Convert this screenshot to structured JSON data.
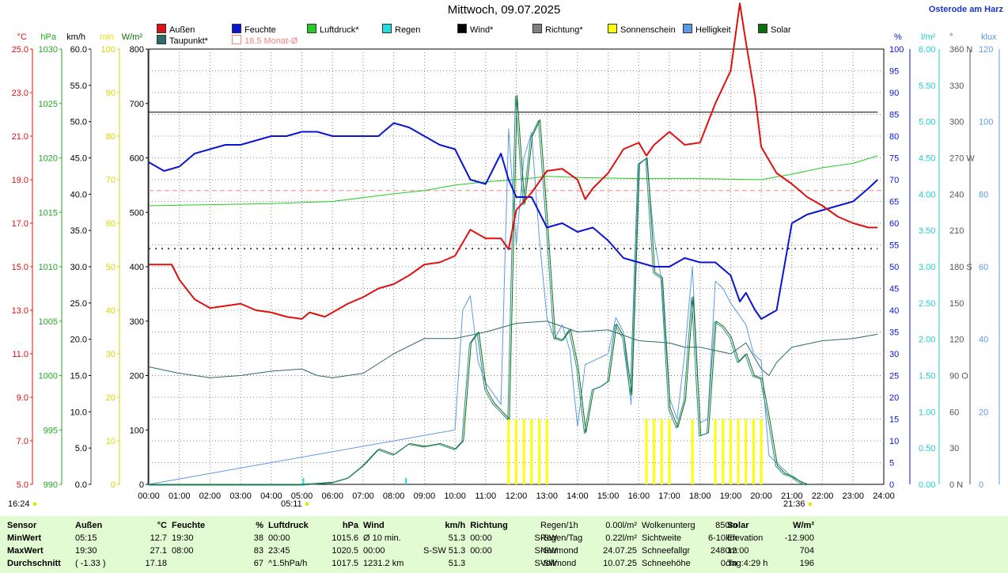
{
  "title": "Mittwoch, 09.07.2025",
  "site": "Osterode am Harz",
  "legend": [
    {
      "label": "Außen",
      "color": "#e01010"
    },
    {
      "label": "Feuchte",
      "color": "#0a14d2"
    },
    {
      "label": "Luftdruck*",
      "color": "#22cc22"
    },
    {
      "label": "Regen",
      "color": "#22dddd"
    },
    {
      "label": "Wind*",
      "color": "#000000"
    },
    {
      "label": "Richtung*",
      "color": "#808080"
    },
    {
      "label": "Sonnenschein",
      "color": "#ffff00"
    },
    {
      "label": "Helligkeit",
      "color": "#5a9be8"
    },
    {
      "label": "Solar",
      "color": "#0a700a"
    },
    {
      "label": "Taupunkt*",
      "color": "#2a6a6a"
    },
    {
      "label": "18.5 Monat-Ø",
      "color": "#ff8080"
    }
  ],
  "axes": {
    "left_units": [
      "°C",
      "hPa",
      "km/h",
      "min",
      "W/m²"
    ],
    "left_unit_colors": [
      "#e01010",
      "#22aa22",
      "#000000",
      "#e6e600",
      "#0a700a"
    ],
    "right_units": [
      "%",
      "l/m²",
      "°",
      "klux"
    ],
    "right_unit_colors": [
      "#0a14d2",
      "#22cccc",
      "#555555",
      "#5a9be8"
    ],
    "temp_ticks": [
      "25.0",
      "23.0",
      "21.0",
      "19.0",
      "17.0",
      "15.0",
      "13.0",
      "11.0",
      "9.0",
      "7.0",
      "5.0"
    ],
    "hpa_ticks": [
      "1030",
      "1025",
      "1020",
      "1015",
      "1010",
      "1005",
      "1000",
      "995",
      "990"
    ],
    "kmh_ticks": [
      "60.0",
      "55.0",
      "50.0",
      "45.0",
      "40.0",
      "35.0",
      "30.0",
      "25.0",
      "20.0",
      "15.0",
      "10.0",
      "5.0",
      "0.0"
    ],
    "min_ticks": [
      "100",
      "90",
      "80",
      "70",
      "60",
      "50",
      "40",
      "30",
      "20",
      "10",
      "0"
    ],
    "wm2_ticks": [
      "800",
      "700",
      "600",
      "500",
      "400",
      "300",
      "200",
      "100",
      "0"
    ],
    "pct_ticks": [
      "100",
      "95",
      "90",
      "85",
      "80",
      "75",
      "70",
      "65",
      "60",
      "55",
      "50",
      "45",
      "40",
      "35",
      "30",
      "25",
      "20",
      "15",
      "10",
      "5",
      "0"
    ],
    "rain_ticks": [
      "6.00",
      "5.50",
      "5.00",
      "4.50",
      "4.00",
      "3.50",
      "3.00",
      "2.50",
      "2.00",
      "1.50",
      "1.00",
      "0.50",
      "0.00"
    ],
    "dir_ticks": [
      "360 N",
      "330",
      "300",
      "270 W",
      "240",
      "210",
      "180 S",
      "150",
      "120",
      "90 O",
      "60",
      "30",
      "0 N"
    ],
    "klux_ticks": [
      "120",
      "100",
      "80",
      "60",
      "40",
      "20",
      "0"
    ],
    "time_ticks": [
      "00:00",
      "01:00",
      "02:00",
      "03:00",
      "04:00",
      "05:00",
      "06:00",
      "07:00",
      "08:00",
      "09:00",
      "10:00",
      "11:00",
      "12:00",
      "13:00",
      "14:00",
      "15:00",
      "16:00",
      "17:00",
      "18:00",
      "19:00",
      "20:00",
      "21:00",
      "22:00",
      "23:00",
      "24:00"
    ]
  },
  "clock_left": "16:24",
  "sunrise": "05:11",
  "sunset": "21:36",
  "chart_data": {
    "type": "line",
    "title": "Mittwoch, 09.07.2025",
    "x_unit": "h",
    "xlim": [
      0,
      24
    ],
    "series": [
      {
        "name": "Außen",
        "unit": "°C",
        "ylim": [
          5,
          25
        ],
        "x": [
          0,
          0.75,
          1.0,
          1.5,
          2.0,
          2.5,
          3.0,
          3.5,
          4.0,
          4.5,
          5.0,
          5.25,
          5.75,
          6.5,
          7.0,
          7.5,
          8.0,
          8.5,
          9.0,
          9.5,
          10.0,
          10.5,
          11.0,
          11.5,
          11.75,
          12.0,
          12.5,
          13.0,
          13.5,
          14.0,
          14.25,
          14.5,
          15.0,
          15.5,
          16.0,
          16.25,
          16.5,
          17.0,
          17.5,
          18.0,
          18.5,
          19.0,
          19.3,
          19.5,
          19.8,
          20.0,
          20.5,
          21.0,
          21.5,
          22.0,
          22.5,
          23.0,
          23.5,
          23.8
        ],
        "y": [
          15.1,
          15.1,
          14.4,
          13.5,
          13.1,
          13.2,
          13.3,
          13.0,
          12.9,
          12.7,
          12.6,
          12.9,
          12.7,
          13.3,
          13.6,
          14.0,
          14.2,
          14.6,
          15.1,
          15.2,
          15.5,
          16.7,
          16.3,
          16.3,
          15.8,
          17.6,
          18.4,
          19.4,
          19.5,
          19.0,
          18.1,
          18.6,
          19.3,
          20.4,
          20.7,
          20.1,
          20.6,
          21.2,
          20.6,
          20.7,
          22.5,
          24.0,
          27.1,
          25.3,
          22.8,
          20.5,
          19.3,
          18.8,
          18.2,
          17.8,
          17.3,
          17.0,
          16.8,
          16.8
        ]
      },
      {
        "name": "Feuchte",
        "unit": "%",
        "ylim": [
          0,
          100
        ],
        "x": [
          0,
          0.5,
          1.0,
          1.5,
          2.0,
          2.5,
          3.0,
          3.5,
          4.0,
          4.5,
          5.0,
          5.5,
          6.0,
          6.5,
          7.0,
          7.5,
          8.0,
          8.5,
          9.0,
          9.5,
          10.0,
          10.5,
          11.0,
          11.5,
          11.75,
          12.0,
          12.5,
          13.0,
          13.5,
          14.0,
          14.5,
          15.0,
          15.5,
          16.0,
          16.5,
          17.0,
          17.5,
          18.0,
          18.5,
          19.0,
          19.3,
          19.5,
          19.8,
          20.0,
          20.5,
          21.0,
          21.5,
          22.0,
          22.5,
          23.0,
          23.5,
          23.8
        ],
        "y": [
          74,
          72,
          73,
          76,
          77,
          78,
          78,
          79,
          80,
          80,
          81,
          81,
          80,
          80,
          80,
          80,
          83,
          82,
          80,
          78,
          77,
          70,
          69,
          76,
          70,
          66,
          66,
          59,
          60,
          58,
          59,
          56,
          52,
          51,
          50,
          50,
          52,
          51,
          51,
          48,
          42,
          44,
          40,
          38,
          40,
          60,
          62,
          63,
          64,
          65,
          68,
          70
        ]
      },
      {
        "name": "Luftdruck*",
        "unit": "hPa",
        "ylim": [
          990,
          1030
        ],
        "x": [
          0,
          2,
          4,
          6,
          8,
          9,
          10,
          11,
          12,
          13,
          14,
          16,
          18,
          20,
          21,
          22,
          23,
          23.8
        ],
        "y": [
          1015.6,
          1015.7,
          1015.8,
          1016.0,
          1016.7,
          1017.0,
          1017.5,
          1017.8,
          1018.0,
          1018.3,
          1018.2,
          1018.1,
          1018.1,
          1018.0,
          1018.5,
          1019.1,
          1019.5,
          1020.2
        ]
      },
      {
        "name": "Wind*",
        "unit": "km/h",
        "ylim": [
          0,
          60
        ],
        "x": [
          0,
          23.8
        ],
        "y": [
          51.3,
          51.3
        ]
      },
      {
        "name": "Richtung*",
        "unit": "°",
        "ylim": [
          0,
          360
        ],
        "x": [
          0,
          23.8
        ],
        "y": [
          195,
          195
        ]
      },
      {
        "name": "18.5 Monat-Ø",
        "unit": "°C",
        "ylim": [
          5,
          25
        ],
        "x": [
          0,
          24
        ],
        "y": [
          18.5,
          18.5
        ]
      },
      {
        "name": "Solar",
        "unit": "W/m²",
        "ylim": [
          0,
          800
        ],
        "x": [
          0,
          5,
          5.5,
          6,
          6.5,
          7,
          7.5,
          8,
          8.5,
          9,
          9.5,
          10,
          10.25,
          10.5,
          10.75,
          11,
          11.25,
          11.5,
          11.75,
          12,
          12.25,
          12.5,
          12.75,
          13,
          13.25,
          13.5,
          13.75,
          14,
          14.25,
          14.5,
          14.75,
          15,
          15.25,
          15.5,
          15.75,
          16,
          16.25,
          16.5,
          16.75,
          17,
          17.25,
          17.5,
          17.75,
          18,
          18.25,
          18.5,
          18.75,
          19,
          19.25,
          19.5,
          19.75,
          20,
          20.25,
          20.5,
          20.75,
          21,
          21.25,
          21.5
        ],
        "y": [
          0,
          0,
          2,
          4,
          12,
          35,
          65,
          55,
          75,
          70,
          75,
          65,
          80,
          260,
          280,
          175,
          150,
          135,
          120,
          715,
          515,
          640,
          670,
          480,
          270,
          265,
          285,
          215,
          95,
          175,
          180,
          190,
          295,
          270,
          165,
          590,
          600,
          390,
          380,
          140,
          105,
          155,
          345,
          90,
          95,
          300,
          290,
          270,
          225,
          240,
          200,
          195,
          120,
          35,
          20,
          15,
          5,
          0
        ]
      },
      {
        "name": "Helligkeit",
        "unit": "klux",
        "ylim": [
          0,
          120
        ],
        "x": [
          0,
          10,
          10.25,
          10.5,
          10.75,
          11,
          11.5,
          11.75,
          12,
          12.25,
          12.5,
          12.75,
          13,
          13.25,
          13.5,
          13.75,
          14,
          14.25,
          14.5,
          15,
          15.25,
          15.5,
          15.75,
          16,
          16.25,
          16.5,
          16.75,
          17,
          17.25,
          17.5,
          17.75,
          18,
          18.25,
          18.5,
          18.75,
          19,
          19.5,
          19.75,
          20,
          20.25,
          20.5,
          21,
          21.5
        ],
        "y": [
          0,
          15,
          48,
          52,
          34,
          28,
          22,
          98,
          66,
          90,
          97,
          68,
          46,
          40,
          44,
          37,
          16,
          33,
          34,
          36,
          46,
          42,
          22,
          88,
          90,
          68,
          56,
          24,
          18,
          36,
          60,
          17,
          18,
          56,
          54,
          50,
          44,
          36,
          34,
          8,
          6,
          2,
          0
        ]
      },
      {
        "name": "Taupunkt*",
        "unit": "°C",
        "ylim": [
          5,
          25
        ],
        "x": [
          0,
          1,
          2,
          3,
          4,
          5,
          5.5,
          6,
          7,
          8,
          9,
          10,
          11,
          12,
          13,
          14,
          15,
          16,
          17,
          17.5,
          18,
          19,
          19.5,
          20,
          20.25,
          20.5,
          21,
          22,
          23,
          23.8
        ],
        "y": [
          10.4,
          10.1,
          9.9,
          10.0,
          10.2,
          10.3,
          10.0,
          9.9,
          10.1,
          11.0,
          11.7,
          11.7,
          12.0,
          12.4,
          12.5,
          12.0,
          12.1,
          11.6,
          11.5,
          11.3,
          11.3,
          11.0,
          11.5,
          10.3,
          10.0,
          10.6,
          11.3,
          11.6,
          11.7,
          11.9
        ]
      },
      {
        "name": "Sonnenschein",
        "unit": "min",
        "ylim": [
          0,
          100
        ],
        "x": [
          11.75,
          12.0,
          12.25,
          12.5,
          12.75,
          13.0,
          16.25,
          16.5,
          16.75,
          17.0,
          17.75,
          18.5,
          18.75,
          19.0,
          19.25,
          19.5,
          19.75,
          20.0
        ],
        "y": [
          15,
          15,
          15,
          15,
          15,
          15,
          15,
          15,
          15,
          15,
          15,
          15,
          15,
          15,
          15,
          15,
          15,
          15
        ]
      },
      {
        "name": "Regen",
        "unit": "l/m²",
        "ylim": [
          0,
          6
        ],
        "x": [
          5.05,
          8.4
        ],
        "y": [
          0.06,
          0.06
        ]
      }
    ]
  },
  "stats": {
    "headers": [
      "Sensor",
      "Außen",
      "°C",
      "Feuchte",
      "%",
      "Luftdruck",
      "hPa",
      "Wind",
      "km/h",
      "Richtung"
    ],
    "rows": [
      {
        "label": "MinWert",
        "aussen_time": "05:15",
        "aussen_val": "12.7",
        "feuchte_time": "19:30",
        "feuchte_val": "38",
        "druck_time": "00:00",
        "druck_val": "1015.6",
        "wind_label": "Ø 10 min.",
        "wind_val": "51.3",
        "richt_time": "00:00",
        "richt_val": "S-SW"
      },
      {
        "label": "MaxWert",
        "aussen_time": "19:30",
        "aussen_val": "27.1",
        "feuchte_time": "08:00",
        "feuchte_val": "83",
        "druck_time": "23:45",
        "druck_val": "1020.5",
        "wind_label": "00:00",
        "wind_val": "S-SW 51.3",
        "richt_time": "00:00",
        "richt_val": "S-SW"
      },
      {
        "label": "Durchschnitt",
        "aussen_time": "( -1.33 )",
        "aussen_val": "17.18",
        "feuchte_time": "",
        "feuchte_val": "67",
        "druck_time": "^1.5hPa/h",
        "druck_val": "1017.5",
        "wind_label": "1231.2 km",
        "wind_val": "51.3",
        "richt_time": "",
        "richt_val": "S-SW"
      }
    ],
    "extra": [
      [
        "Regen/1h",
        "0.00l/m²",
        "Wolkenunterg",
        "850m"
      ],
      [
        "Regen/Tag",
        "0.22l/m²",
        "Sichtweite",
        "6-10km"
      ],
      [
        "Neumond",
        "24.07.25",
        "Schneefallgr",
        "2480m"
      ],
      [
        "Vollmond",
        "10.07.25",
        "Schneehöhe",
        "0cm"
      ]
    ],
    "solar": {
      "header": "Solar",
      "unit": "W/m²",
      "rows": [
        [
          "Elevation",
          "-12.900"
        ],
        [
          "12:00",
          "704"
        ],
        [
          "Tag:4:29 h",
          "196"
        ]
      ]
    }
  }
}
